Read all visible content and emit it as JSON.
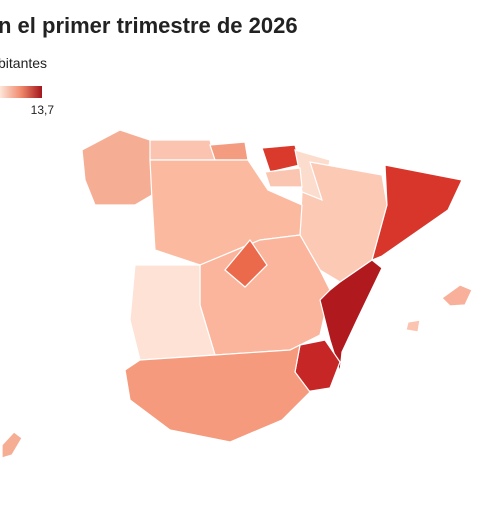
{
  "title": "n el primer trimestre de 2026",
  "subtitle": "bitantes",
  "legend": {
    "colors": [
      "#fde6da",
      "#f08a6c",
      "#a3151b"
    ],
    "max": {
      "value": 13.7,
      "label": "13,7"
    }
  },
  "regions": [
    {
      "color": "#f5ae94"
    },
    {
      "color": "#fbc4b0"
    },
    {
      "color": "#f39c80"
    },
    {
      "color": "#d93a2b"
    },
    {
      "color": "#fcdccd"
    },
    {
      "color": "#fbc6b1"
    },
    {
      "color": "#fcc9b4"
    },
    {
      "color": "#d8362a"
    },
    {
      "color": "#fbb99f"
    },
    {
      "color": "#fbb59c"
    },
    {
      "color": "#ec6a4c"
    },
    {
      "color": "#fde2d5"
    },
    {
      "color": "#b01a1f"
    },
    {
      "color": "#c72626"
    },
    {
      "color": "#f59a7c"
    },
    {
      "color": "#f8b09a"
    },
    {
      "color": "#fbc4b0"
    },
    {
      "color": "#f5ae94"
    }
  ]
}
